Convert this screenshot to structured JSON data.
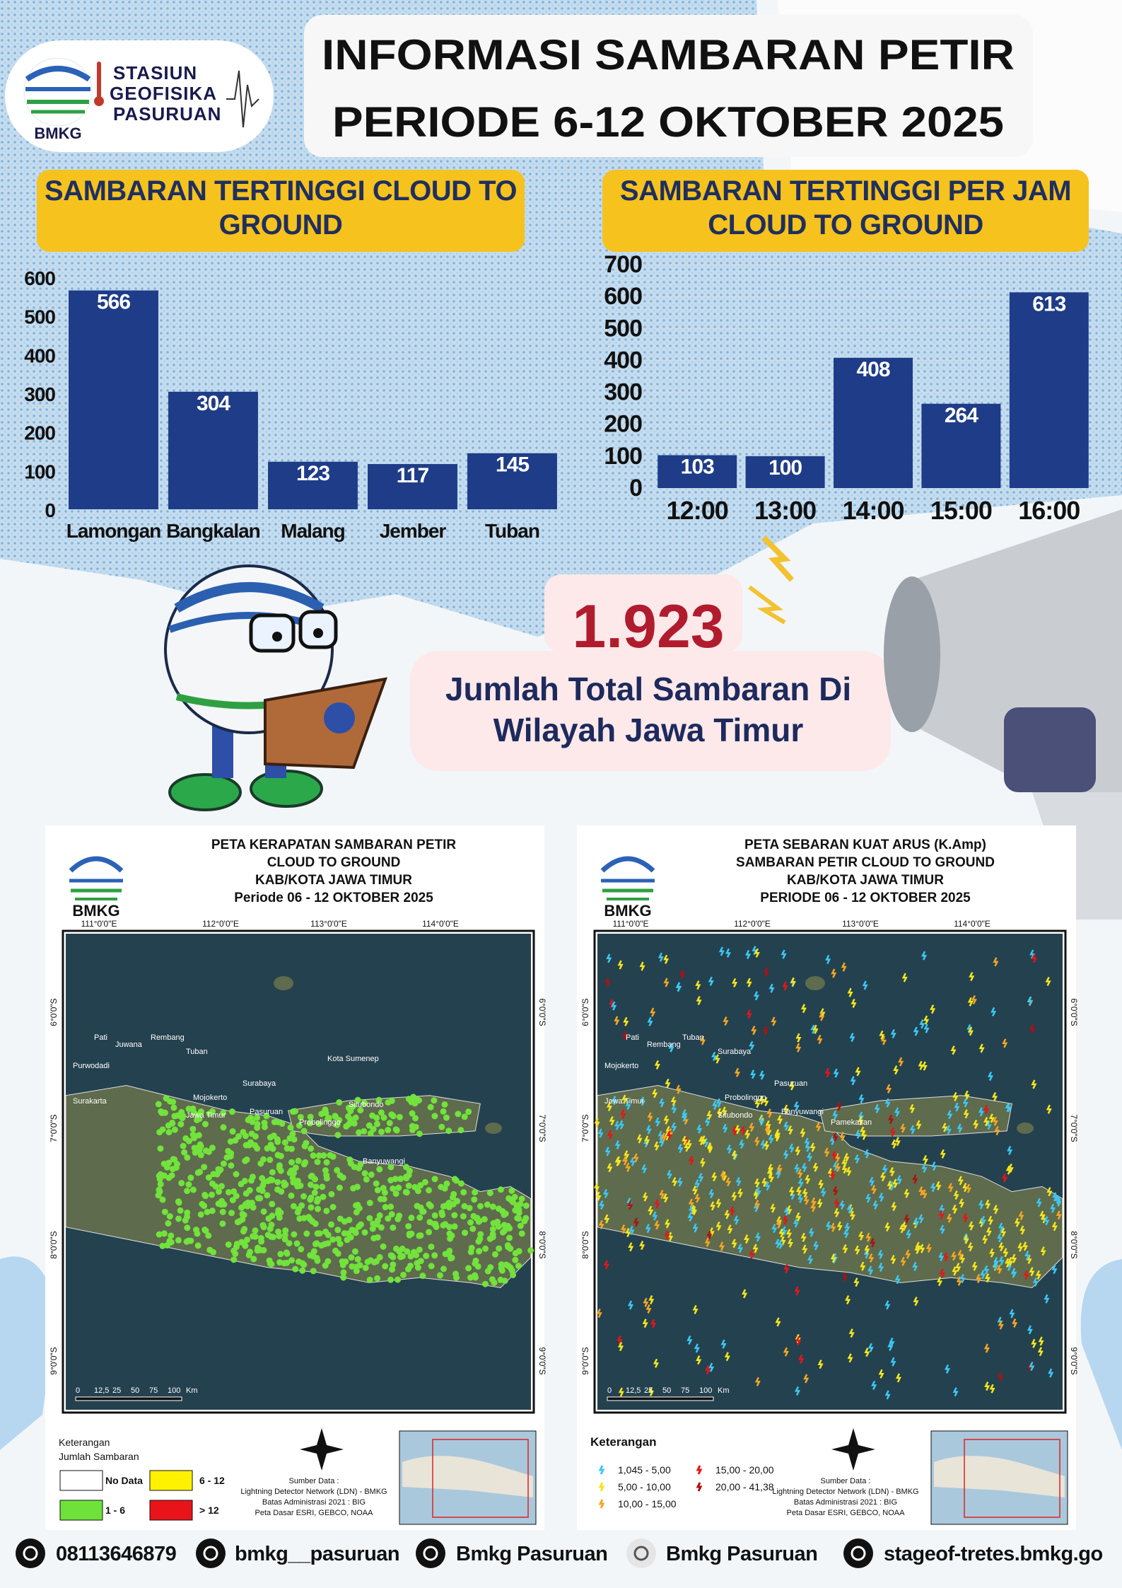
{
  "header": {
    "logo": "BMKG",
    "station": [
      "STASIUN",
      "GEOFISIKA",
      "PASURUAN"
    ],
    "title": [
      "INFORMASI SAMBARAN PETIR",
      "PERIODE 6-12 OKTOBER 2025"
    ]
  },
  "chart_data": [
    {
      "type": "bar",
      "title": "SAMBARAN TERTINGGI  CLOUD TO GROUND",
      "categories": [
        "Lamongan",
        "Bangkalan",
        "Malang",
        "Jember",
        "Tuban"
      ],
      "values": [
        566,
        304,
        123,
        117,
        145
      ],
      "color": "#1f3c88",
      "ylim": [
        0,
        600
      ],
      "yticks": [
        0,
        100,
        200,
        300,
        400,
        500,
        600
      ],
      "grid": false
    },
    {
      "type": "bar",
      "title": "SAMBARAN TERTINGGI PER JAM CLOUD TO GROUND",
      "categories": [
        "12:00",
        "13:00",
        "14:00",
        "15:00",
        "16:00"
      ],
      "values": [
        103,
        100,
        408,
        264,
        613
      ],
      "color": "#1f3c88",
      "ylim": [
        0,
        700
      ],
      "yticks": [
        0,
        100,
        200,
        300,
        400,
        500,
        600,
        700
      ],
      "grid": true
    }
  ],
  "total": {
    "value": "1.923",
    "label_lines": [
      "Jumlah Total Sambaran Di",
      "Wilayah Jawa Timur"
    ]
  },
  "maps": [
    {
      "logo": "BMKG",
      "title_lines": [
        "PETA KERAPATAN SAMBARAN PETIR",
        "CLOUD TO GROUND",
        "KAB/KOTA JAWA TIMUR",
        "Periode 06 - 12  OKTOBER  2025"
      ],
      "lon_labels": [
        "111°0'0\"E",
        "112°0'0\"E",
        "113°0'0\"E",
        "114°0'0\"E"
      ],
      "lat_labels": [
        "6°0'0\"S",
        "7°0'0\"S",
        "8°0'0\"S",
        "9°0'0\"S"
      ],
      "places": [
        "Pati",
        "Juwana",
        "Rembang",
        "Tuban",
        "Purwodadi",
        "Surakarta",
        "Surabaya",
        "Mojokerto",
        "Jawa Timur",
        "Pasuruan",
        "Probolinggo",
        "Situbondo",
        "Banyuwangi",
        "Kota Sumenep"
      ],
      "scale_labels": [
        "0",
        "12,5",
        "25",
        "50",
        "75",
        "100",
        "Km"
      ],
      "legend_title": [
        "Keterangan",
        "Jumlah Sambaran"
      ],
      "legend": [
        {
          "label": "No Data",
          "color": "#ffffff"
        },
        {
          "label": "6 - 12",
          "color": "#fff200"
        },
        {
          "label": "1 - 6",
          "color": "#6fe13b"
        },
        {
          "label": "> 12",
          "color": "#e8141a"
        }
      ],
      "source": [
        "Sumber Data :",
        "Lightning Detector Network (LDN) - BMKG",
        "Batas Administrasi 2021 : BIG",
        "Peta Dasar ESRI, GEBCO, NOAA"
      ]
    },
    {
      "logo": "BMKG",
      "title_lines": [
        "PETA SEBARAN KUAT ARUS (K.Amp)",
        "SAMBARAN PETIR CLOUD TO GROUND",
        "KAB/KOTA JAWA TIMUR",
        "PERIODE 06 - 12  OKTOBER  2025"
      ],
      "lon_labels": [
        "111°0'0\"E",
        "112°0'0\"E",
        "113°0'0\"E",
        "114°0'0\"E"
      ],
      "lat_labels": [
        "6°0'0\"S",
        "7°0'0\"S",
        "8°0'0\"S",
        "9°0'0\"S"
      ],
      "places": [
        "Pati",
        "Rembang",
        "Tuban",
        "Surabaya",
        "Mojokerto",
        "Jawa Timur",
        "Pasuruan",
        "Probolinggo",
        "Situbondo",
        "Banyuwangi",
        "Pamekasan"
      ],
      "scale_labels": [
        "0",
        "12,5",
        "25",
        "50",
        "75",
        "100",
        "Km"
      ],
      "legend_title": [
        "Keterangan"
      ],
      "legend": [
        {
          "label": "1,045 - 5,00",
          "color": "#3cc8f4"
        },
        {
          "label": "15,00 - 20,00",
          "color": "#e8141a"
        },
        {
          "label": "5,00 - 10,00",
          "color": "#f4e61c"
        },
        {
          "label": "20,00 - 41,38",
          "color": "#b01010"
        },
        {
          "label": "10,00 - 15,00",
          "color": "#f5a623"
        }
      ],
      "source": [
        "Sumber Data :",
        "Lightning Detector Network (LDN) - BMKG",
        "Batas Administrasi 2021 : BIG",
        "Peta Dasar ESRI, GEBCO, NOAA"
      ]
    }
  ],
  "footer": [
    "08113646879",
    "bmkg__pasuruan",
    "Bmkg Pasuruan",
    "Bmkg Pasuruan",
    "stageof-tretes.bmkg.go"
  ]
}
